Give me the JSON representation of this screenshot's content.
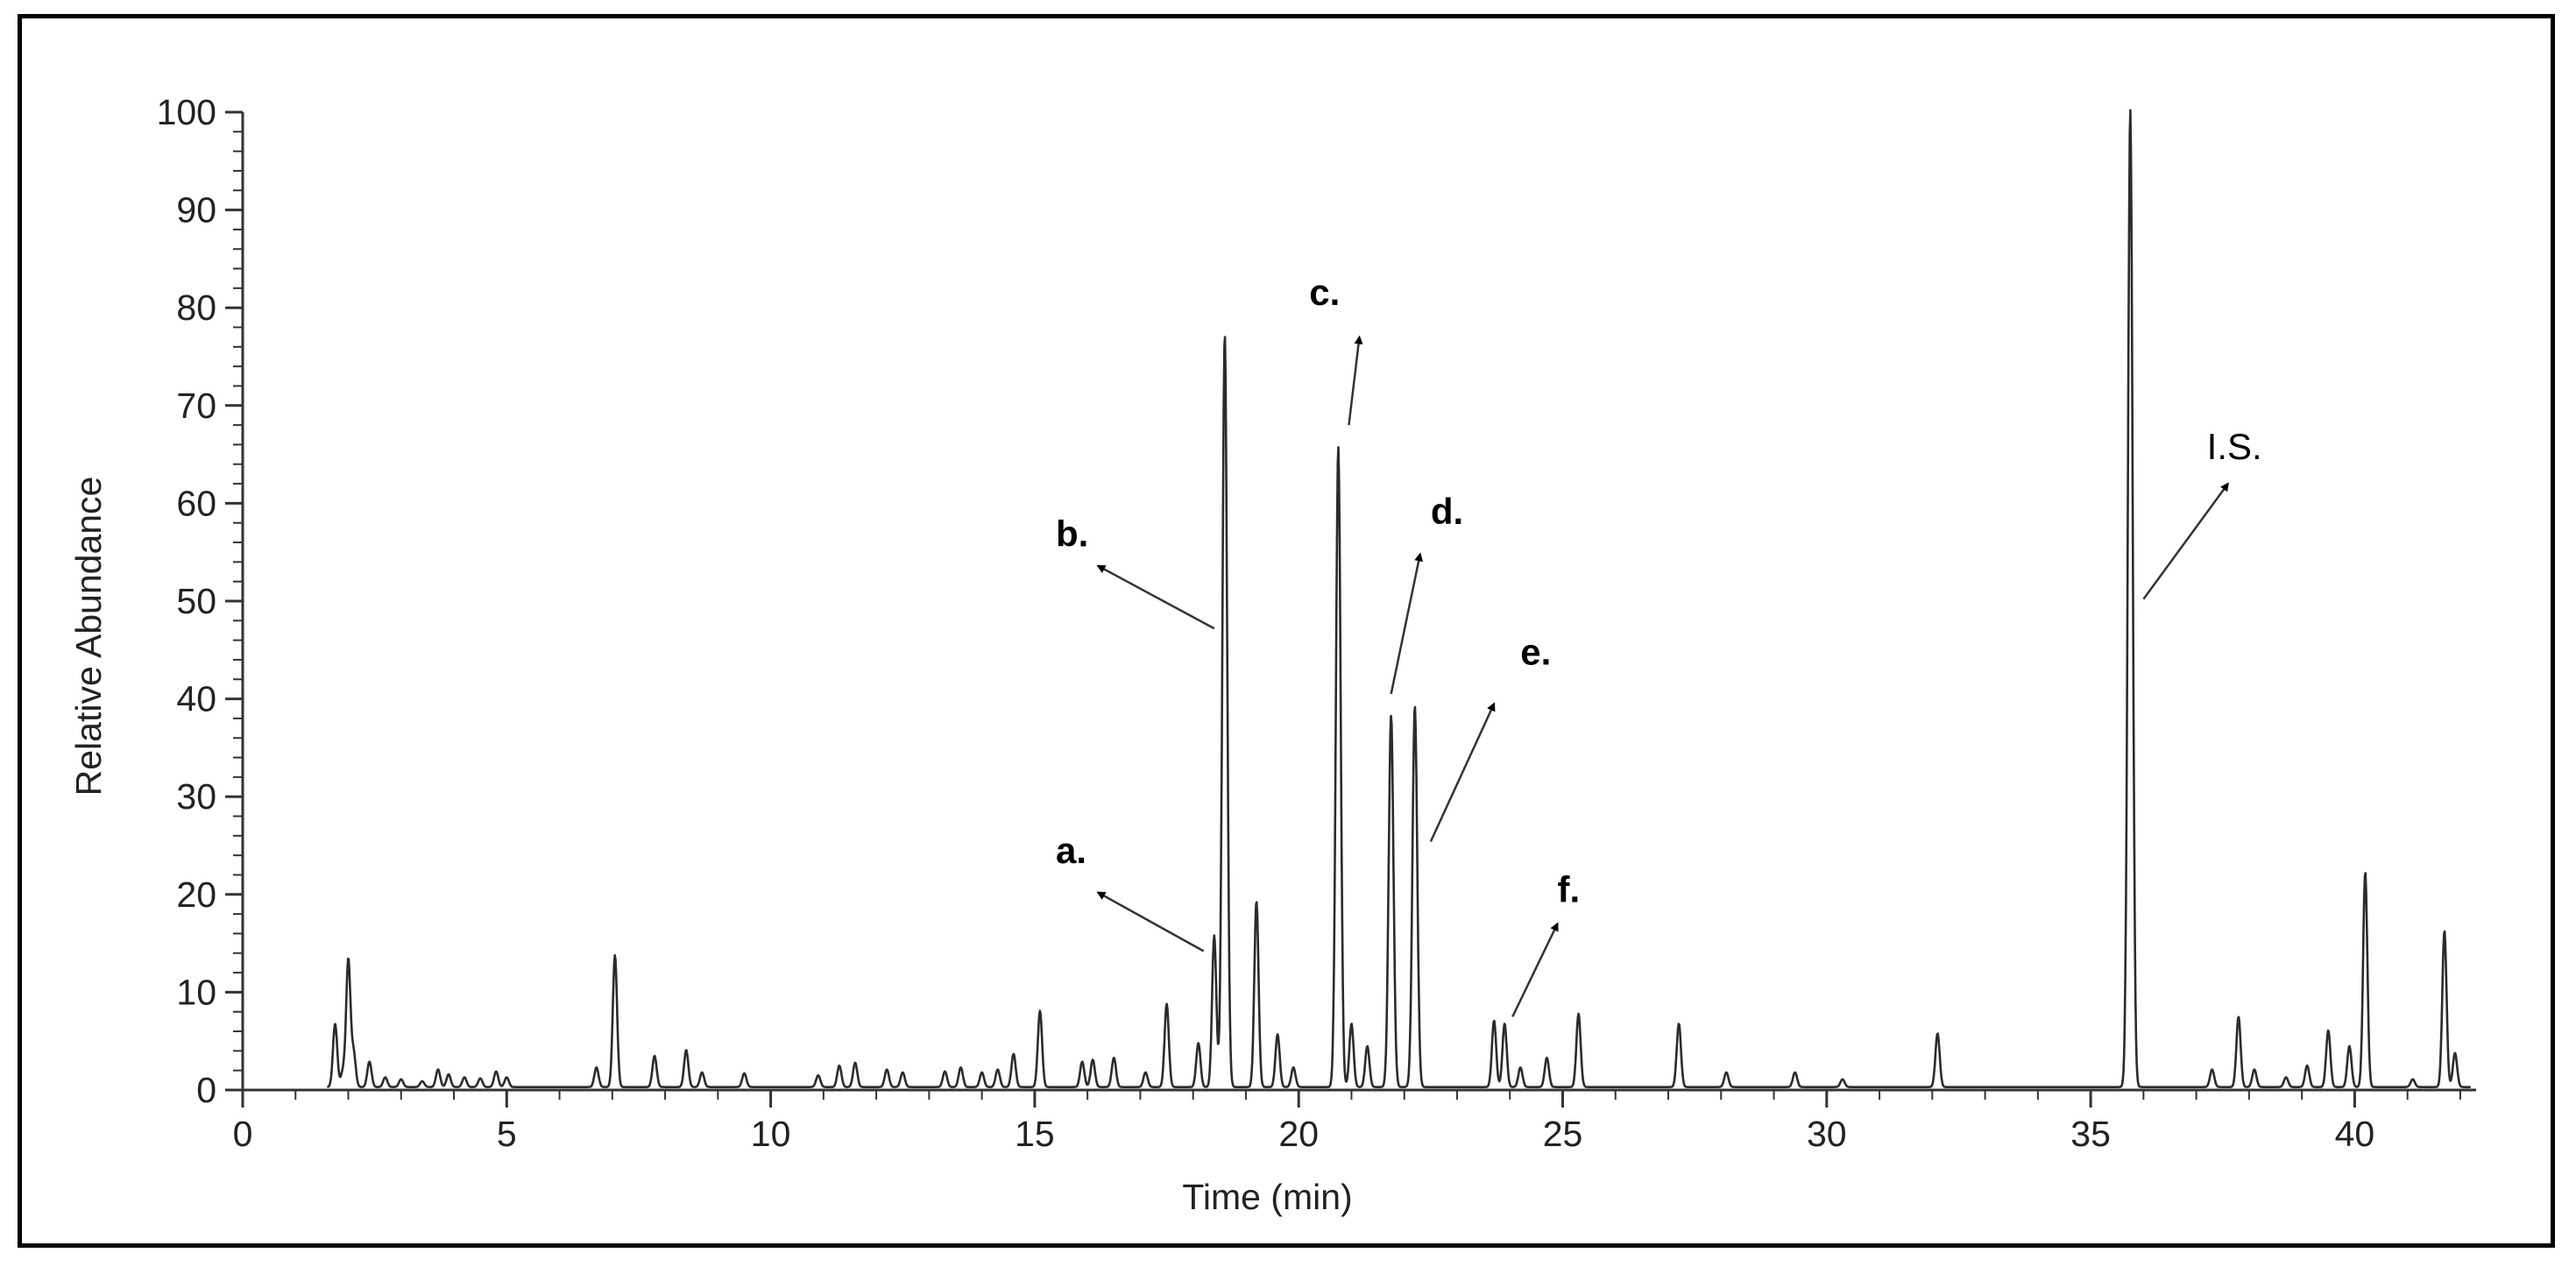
{
  "chart_data": {
    "type": "line",
    "xlabel": "Time (min)",
    "ylabel": "Relative Abundance",
    "xlim": [
      0,
      42.3
    ],
    "ylim": [
      0,
      100
    ],
    "x_ticks": [
      0,
      5,
      10,
      15,
      20,
      25,
      30,
      35,
      40
    ],
    "y_ticks": [
      0,
      10,
      20,
      30,
      40,
      50,
      60,
      70,
      80,
      90,
      100
    ],
    "minor_x_step": 1,
    "minor_y_step": 2,
    "grid": false,
    "line_color": "#2b2b2b",
    "baseline": 0.3,
    "peaks": [
      {
        "x": 1.75,
        "y": 6.5
      },
      {
        "x": 1.9,
        "y": 1.6
      },
      {
        "x": 2.0,
        "y": 13
      },
      {
        "x": 2.1,
        "y": 3.5
      },
      {
        "x": 2.4,
        "y": 2.6
      },
      {
        "x": 2.7,
        "y": 1.0
      },
      {
        "x": 3.0,
        "y": 0.8
      },
      {
        "x": 3.4,
        "y": 0.6
      },
      {
        "x": 3.7,
        "y": 1.8
      },
      {
        "x": 3.9,
        "y": 1.3
      },
      {
        "x": 4.2,
        "y": 1.0
      },
      {
        "x": 4.5,
        "y": 0.9
      },
      {
        "x": 4.8,
        "y": 1.6
      },
      {
        "x": 5.0,
        "y": 1.0
      },
      {
        "x": 6.7,
        "y": 2.0
      },
      {
        "x": 7.05,
        "y": 13.5
      },
      {
        "x": 7.8,
        "y": 3.2
      },
      {
        "x": 8.4,
        "y": 3.8
      },
      {
        "x": 8.7,
        "y": 1.5
      },
      {
        "x": 9.5,
        "y": 1.4
      },
      {
        "x": 10.9,
        "y": 1.2
      },
      {
        "x": 11.3,
        "y": 2.2
      },
      {
        "x": 11.6,
        "y": 2.5
      },
      {
        "x": 12.2,
        "y": 1.8
      },
      {
        "x": 12.5,
        "y": 1.5
      },
      {
        "x": 13.3,
        "y": 1.6
      },
      {
        "x": 13.6,
        "y": 2.0
      },
      {
        "x": 14.0,
        "y": 1.5
      },
      {
        "x": 14.3,
        "y": 1.8
      },
      {
        "x": 14.6,
        "y": 3.4
      },
      {
        "x": 15.1,
        "y": 7.8
      },
      {
        "x": 15.9,
        "y": 2.6
      },
      {
        "x": 16.1,
        "y": 2.8
      },
      {
        "x": 16.5,
        "y": 3.0
      },
      {
        "x": 17.1,
        "y": 1.5
      },
      {
        "x": 17.5,
        "y": 8.5
      },
      {
        "x": 18.1,
        "y": 4.5
      },
      {
        "x": 18.4,
        "y": 15.5
      },
      {
        "x": 18.6,
        "y": 77
      },
      {
        "x": 19.2,
        "y": 19
      },
      {
        "x": 19.6,
        "y": 5.4
      },
      {
        "x": 19.9,
        "y": 2.0
      },
      {
        "x": 20.75,
        "y": 65.5
      },
      {
        "x": 21.0,
        "y": 6.5
      },
      {
        "x": 21.3,
        "y": 4.2
      },
      {
        "x": 21.75,
        "y": 38
      },
      {
        "x": 22.2,
        "y": 39
      },
      {
        "x": 23.7,
        "y": 6.8
      },
      {
        "x": 23.9,
        "y": 6.5
      },
      {
        "x": 24.2,
        "y": 2.0
      },
      {
        "x": 24.7,
        "y": 3.0
      },
      {
        "x": 25.3,
        "y": 7.5
      },
      {
        "x": 27.2,
        "y": 6.5
      },
      {
        "x": 28.1,
        "y": 1.5
      },
      {
        "x": 29.4,
        "y": 1.5
      },
      {
        "x": 30.3,
        "y": 0.8
      },
      {
        "x": 32.1,
        "y": 5.5
      },
      {
        "x": 35.75,
        "y": 100
      },
      {
        "x": 37.3,
        "y": 1.8
      },
      {
        "x": 37.8,
        "y": 7.2
      },
      {
        "x": 38.1,
        "y": 1.8
      },
      {
        "x": 38.7,
        "y": 1.0
      },
      {
        "x": 39.1,
        "y": 2.2
      },
      {
        "x": 39.5,
        "y": 5.8
      },
      {
        "x": 39.9,
        "y": 4.2
      },
      {
        "x": 40.2,
        "y": 22
      },
      {
        "x": 41.1,
        "y": 0.8
      },
      {
        "x": 41.7,
        "y": 16
      },
      {
        "x": 41.9,
        "y": 3.5
      }
    ],
    "annotations": [
      {
        "label": "a.",
        "text_x": 15.4,
        "text_y": 23.2,
        "arrow_from": [
          18.2,
          14.2
        ],
        "arrow_to": [
          16.2,
          20.2
        ],
        "bold": true
      },
      {
        "label": "b.",
        "text_x": 15.4,
        "text_y": 55.6,
        "arrow_from": [
          18.4,
          47.2
        ],
        "arrow_to": [
          16.2,
          53.6
        ],
        "bold": true
      },
      {
        "label": "c.",
        "text_x": 20.2,
        "text_y": 80.3,
        "arrow_from": [
          20.95,
          68.0
        ],
        "arrow_to": [
          21.15,
          77.0
        ],
        "bold": true
      },
      {
        "label": "d.",
        "text_x": 22.5,
        "text_y": 57.9,
        "arrow_from": [
          21.75,
          40.5
        ],
        "arrow_to": [
          22.3,
          54.8
        ],
        "bold": true
      },
      {
        "label": "e.",
        "text_x": 24.2,
        "text_y": 43.5,
        "arrow_from": [
          22.5,
          25.4
        ],
        "arrow_to": [
          23.7,
          39.5
        ],
        "bold": true
      },
      {
        "label": "f.",
        "text_x": 24.9,
        "text_y": 19.2,
        "arrow_from": [
          24.05,
          7.5
        ],
        "arrow_to": [
          24.9,
          17.0
        ],
        "bold": true
      },
      {
        "label": "I.S.",
        "text_x": 37.2,
        "text_y": 64.5,
        "arrow_from": [
          36.0,
          50.2
        ],
        "arrow_to": [
          37.6,
          62.0
        ],
        "bold": false
      }
    ]
  }
}
